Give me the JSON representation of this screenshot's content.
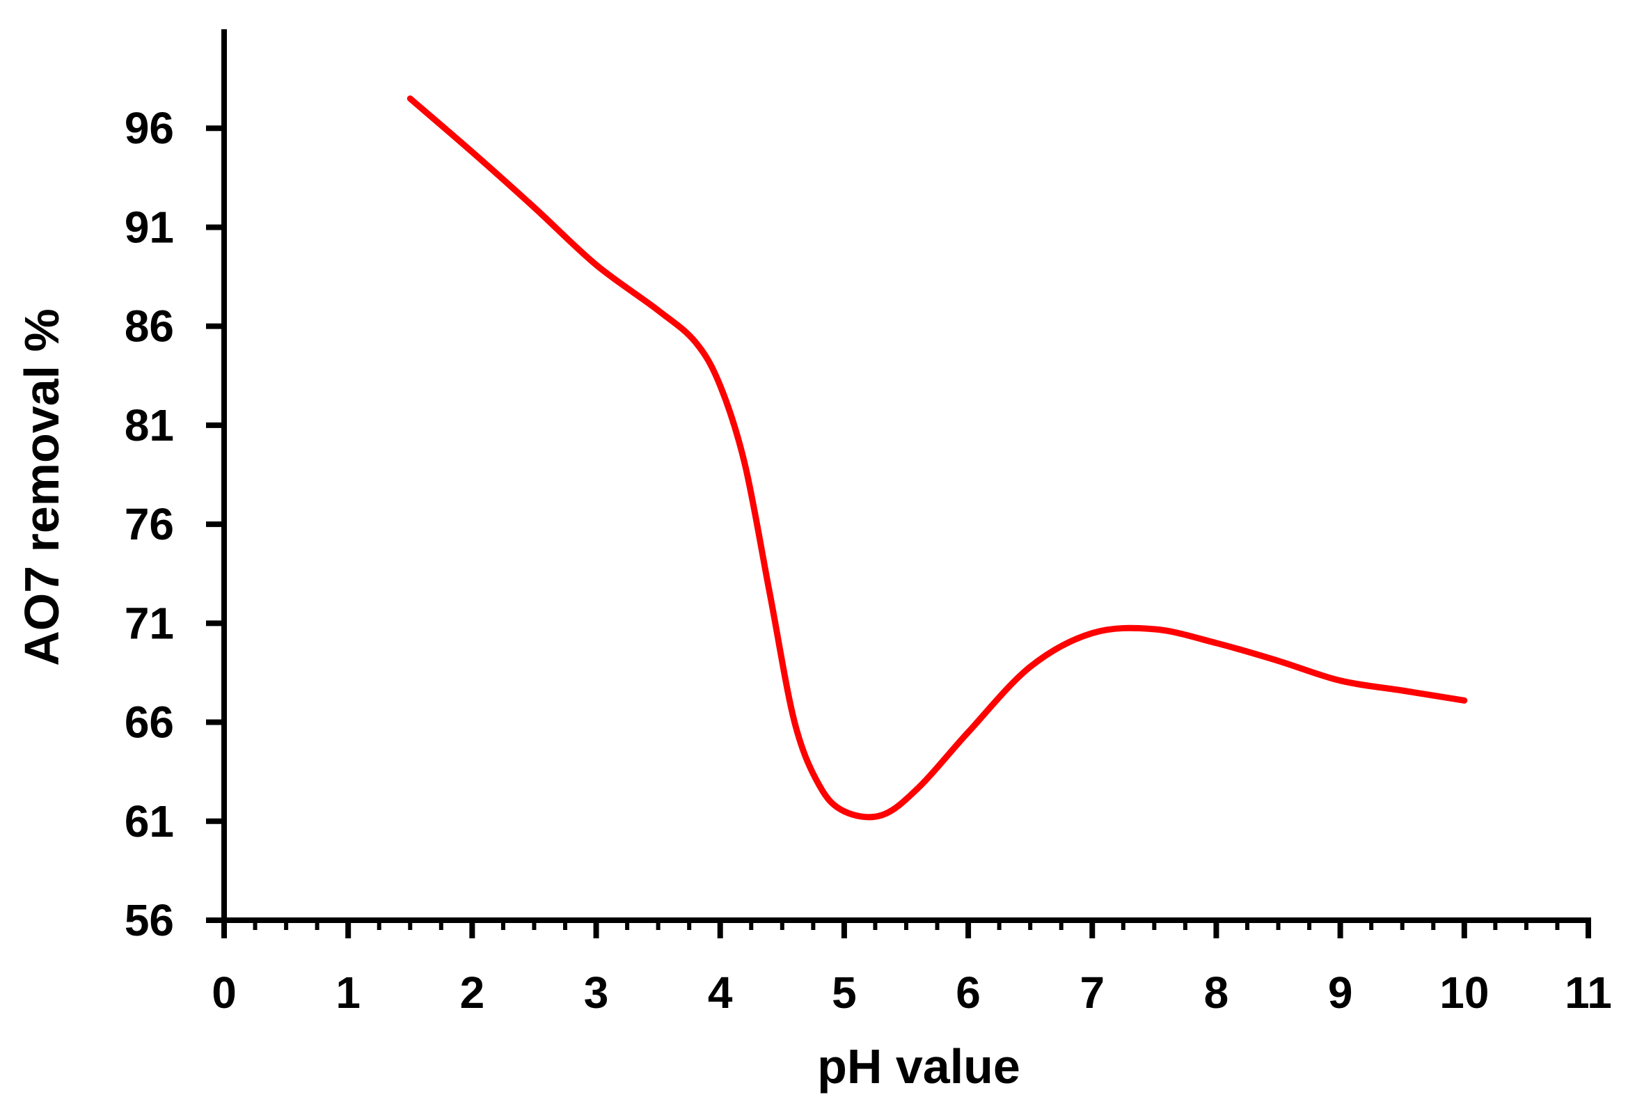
{
  "chart_data": {
    "type": "line",
    "title": "",
    "xlabel": "pH value",
    "ylabel": "AO7 removal %",
    "xlim": [
      0,
      11
    ],
    "ylim": [
      56,
      101
    ],
    "x_ticks": [
      0,
      1,
      2,
      3,
      4,
      5,
      6,
      7,
      8,
      9,
      10,
      11
    ],
    "y_ticks": [
      56,
      61,
      66,
      71,
      76,
      81,
      86,
      91,
      96
    ],
    "x_minor_step": 0.25,
    "grid": false,
    "legend": "none",
    "series": [
      {
        "color": "#ff0000",
        "x": [
          1.5,
          2.0,
          2.5,
          3.0,
          3.5,
          3.8,
          4.0,
          4.2,
          4.4,
          4.6,
          4.8,
          5.0,
          5.3,
          5.6,
          6.0,
          6.5,
          7.0,
          7.5,
          8.0,
          8.5,
          9.0,
          9.5,
          10.0
        ],
        "y": [
          97.5,
          94.8,
          92.0,
          89.1,
          86.8,
          85.2,
          83.0,
          79.0,
          72.5,
          66.0,
          62.8,
          61.5,
          61.3,
          62.7,
          65.5,
          68.8,
          70.5,
          70.7,
          70.0,
          69.1,
          68.1,
          67.6,
          67.1
        ]
      }
    ]
  }
}
